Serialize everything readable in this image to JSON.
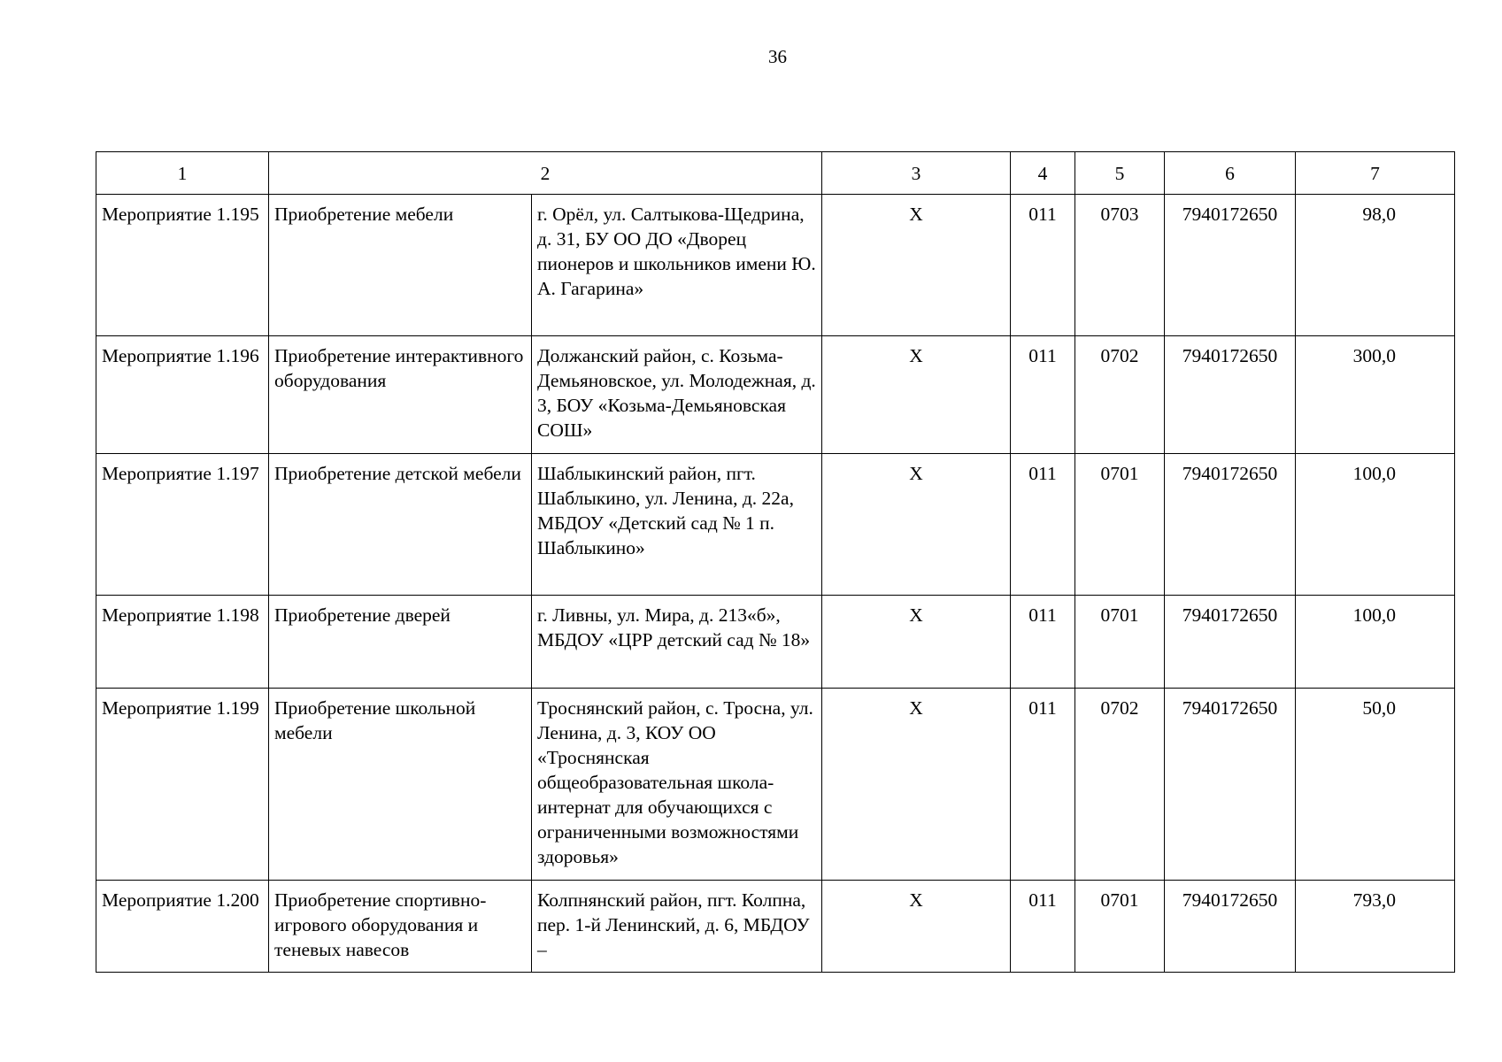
{
  "page_number": "36",
  "header": [
    "1",
    "2",
    "3",
    "4",
    "5",
    "6",
    "7"
  ],
  "rows": [
    {
      "id": "Мероприятие 1.195",
      "name": "Приобретение мебели",
      "address": "г. Орёл, ул. Салтыкова-Щедрина, д. 31, БУ ОО ДО «Дворец пионеров и школьников имени Ю. А. Гагарина»",
      "c3": "X",
      "c4": "011",
      "c5": "0703",
      "c6": "7940172650",
      "c7": "98,0"
    },
    {
      "id": "Мероприятие 1.196",
      "name": "Приобретение интерактивного оборудования",
      "address": "Должанский район, с. Козьма-Демьяновское, ул. Молодежная, д. 3, БОУ «Козьма-Демьяновская СОШ»",
      "c3": "X",
      "c4": "011",
      "c5": "0702",
      "c6": "7940172650",
      "c7": "300,0"
    },
    {
      "id": "Мероприятие 1.197",
      "name": "Приобретение детской мебели",
      "address": "Шаблыкинский район, пгт. Шаблыкино, ул. Ленина, д. 22а, МБДОУ «Детский сад № 1 п. Шаблыкино»",
      "c3": "X",
      "c4": "011",
      "c5": "0701",
      "c6": "7940172650",
      "c7": "100,0"
    },
    {
      "id": "Мероприятие 1.198",
      "name": "Приобретение дверей",
      "address": "г. Ливны, ул. Мира, д. 213«б», МБДОУ «ЦРР детский сад № 18»",
      "c3": "X",
      "c4": "011",
      "c5": "0701",
      "c6": "7940172650",
      "c7": "100,0"
    },
    {
      "id": "Мероприятие 1.199",
      "name": "Приобретение школьной мебели",
      "address": "Троснянский район, с. Тросна, ул. Ленина, д. 3, КОУ ОО «Троснянская общеобразовательная школа-интернат для обучающихся с ограниченными возможностями здоровья»",
      "c3": "X",
      "c4": "011",
      "c5": "0702",
      "c6": "7940172650",
      "c7": "50,0"
    },
    {
      "id": "Мероприятие 1.200",
      "name": "Приобретение спортивно-игрового оборудования и теневых навесов",
      "address": "Колпнянский район, пгт. Колпна, пер. 1-й Ленинский, д. 6, МБДОУ –",
      "c3": "X",
      "c4": "011",
      "c5": "0701",
      "c6": "7940172650",
      "c7": "793,0"
    }
  ]
}
